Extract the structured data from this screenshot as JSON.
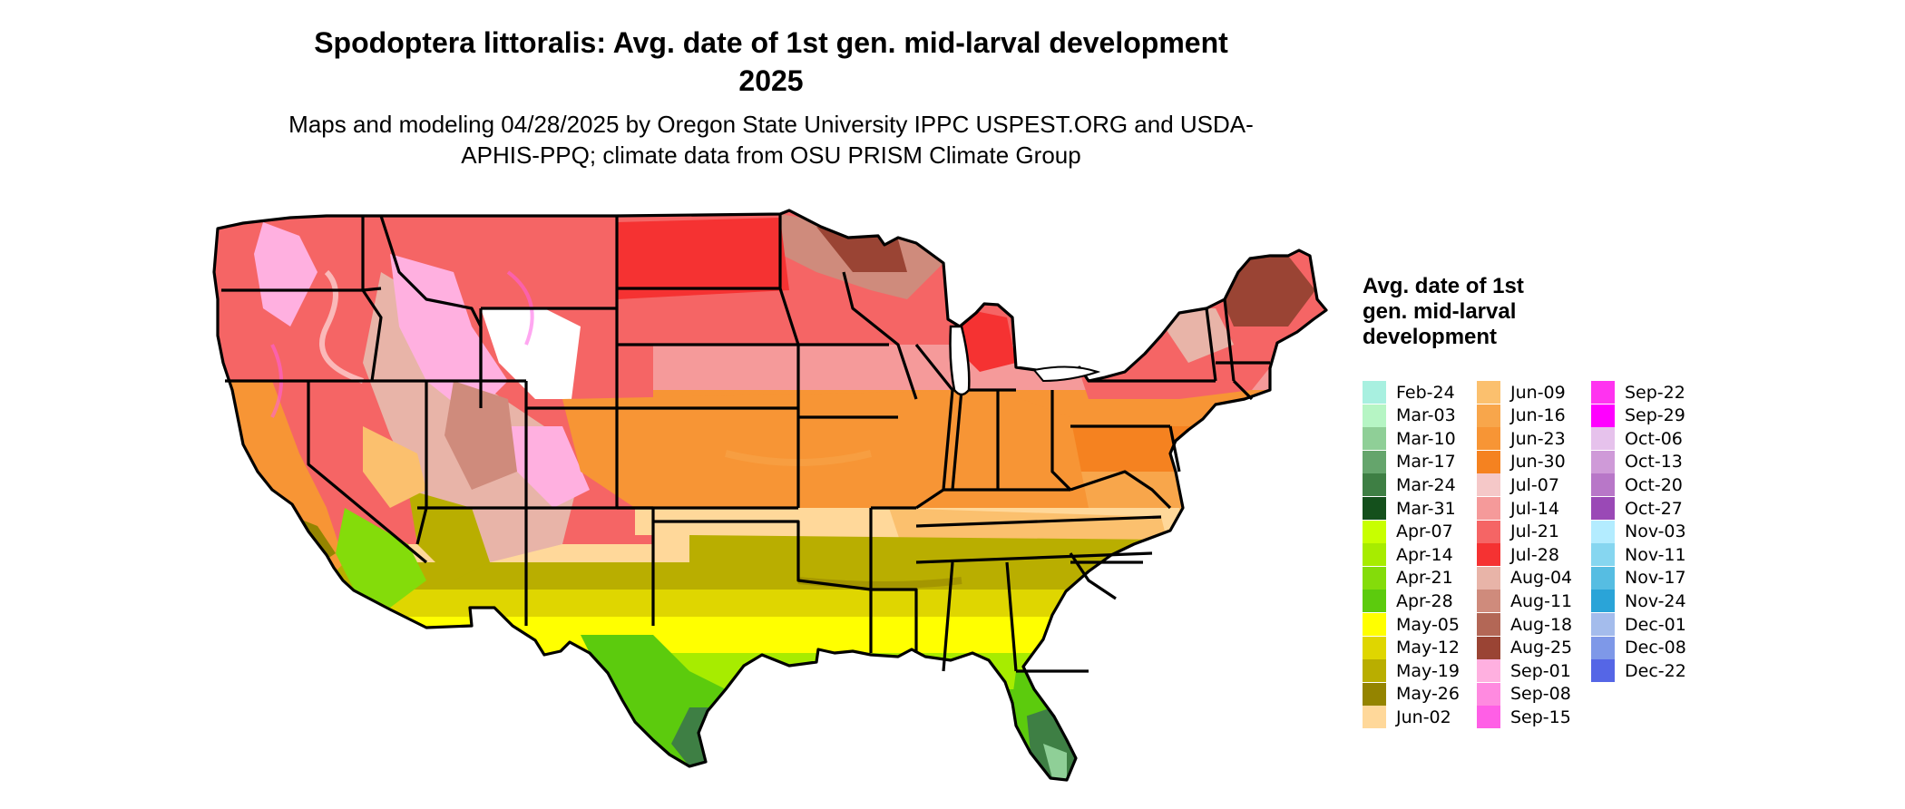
{
  "title": "Spodoptera littoralis: Avg. date of 1st gen. mid-larval development 2025",
  "subtitle": "Maps and modeling 04/28/2025 by Oregon State University IPPC USPEST.ORG and USDA-APHIS-PPQ; climate data from OSU PRISM Climate Group",
  "legend": {
    "title": "Avg. date of 1st gen. mid-larval development",
    "columns": [
      [
        {
          "label": "Feb-24",
          "color": "#a8f0e0"
        },
        {
          "label": "Mar-03",
          "color": "#b6f5c4"
        },
        {
          "label": "Mar-10",
          "color": "#8fcf97"
        },
        {
          "label": "Mar-17",
          "color": "#65a56c"
        },
        {
          "label": "Mar-24",
          "color": "#3e7f44"
        },
        {
          "label": "Mar-31",
          "color": "#14501c"
        },
        {
          "label": "Apr-07",
          "color": "#c8ff00"
        },
        {
          "label": "Apr-14",
          "color": "#a7ec00"
        },
        {
          "label": "Apr-21",
          "color": "#84dc0a"
        },
        {
          "label": "Apr-28",
          "color": "#5ccb0d"
        },
        {
          "label": "May-05",
          "color": "#ffff00"
        },
        {
          "label": "May-12",
          "color": "#dfd600"
        },
        {
          "label": "May-19",
          "color": "#b9ae00"
        },
        {
          "label": "May-26",
          "color": "#948400"
        },
        {
          "label": "Jun-02",
          "color": "#ffd89a"
        }
      ],
      [
        {
          "label": "Jun-09",
          "color": "#fbc06e"
        },
        {
          "label": "Jun-16",
          "color": "#f8a64b"
        },
        {
          "label": "Jun-23",
          "color": "#f79535"
        },
        {
          "label": "Jun-30",
          "color": "#f58220"
        },
        {
          "label": "Jul-07",
          "color": "#f5c8c8"
        },
        {
          "label": "Jul-14",
          "color": "#f59a9a"
        },
        {
          "label": "Jul-21",
          "color": "#f56565"
        },
        {
          "label": "Jul-28",
          "color": "#f53232"
        },
        {
          "label": "Aug-04",
          "color": "#e8b4a8"
        },
        {
          "label": "Aug-11",
          "color": "#cf8b7c"
        },
        {
          "label": "Aug-18",
          "color": "#b36756"
        },
        {
          "label": "Aug-25",
          "color": "#9a4434"
        },
        {
          "label": "Sep-01",
          "color": "#ffb0e0"
        },
        {
          "label": "Sep-08",
          "color": "#ff8ae0"
        },
        {
          "label": "Sep-15",
          "color": "#ff5fe6"
        }
      ],
      [
        {
          "label": "Sep-22",
          "color": "#ff33f0"
        },
        {
          "label": "Sep-29",
          "color": "#ff00ff"
        },
        {
          "label": "Oct-06",
          "color": "#e6c2ec"
        },
        {
          "label": "Oct-13",
          "color": "#cf9ad8"
        },
        {
          "label": "Oct-20",
          "color": "#b877c8"
        },
        {
          "label": "Oct-27",
          "color": "#9a49b6"
        },
        {
          "label": "Nov-03",
          "color": "#b3ecff"
        },
        {
          "label": "Nov-11",
          "color": "#86d6f0"
        },
        {
          "label": "Nov-17",
          "color": "#56bde2"
        },
        {
          "label": "Nov-24",
          "color": "#2aa4d8"
        },
        {
          "label": "Dec-01",
          "color": "#a4bcec"
        },
        {
          "label": "Dec-08",
          "color": "#7e98e8"
        },
        {
          "label": "Dec-22",
          "color": "#5566e6"
        }
      ]
    ]
  },
  "map": {
    "states": [
      {
        "name": "Washington"
      },
      {
        "name": "Oregon"
      },
      {
        "name": "California"
      },
      {
        "name": "Nevada"
      },
      {
        "name": "Idaho"
      },
      {
        "name": "Montana"
      },
      {
        "name": "Wyoming"
      },
      {
        "name": "Utah"
      },
      {
        "name": "Arizona"
      },
      {
        "name": "Colorado"
      },
      {
        "name": "New Mexico"
      },
      {
        "name": "North Dakota"
      },
      {
        "name": "South Dakota"
      },
      {
        "name": "Nebraska"
      },
      {
        "name": "Kansas"
      },
      {
        "name": "Oklahoma"
      },
      {
        "name": "Texas"
      },
      {
        "name": "Minnesota"
      },
      {
        "name": "Iowa"
      },
      {
        "name": "Missouri"
      },
      {
        "name": "Arkansas"
      },
      {
        "name": "Louisiana"
      },
      {
        "name": "Wisconsin"
      },
      {
        "name": "Illinois"
      },
      {
        "name": "Michigan"
      },
      {
        "name": "Indiana"
      },
      {
        "name": "Ohio"
      },
      {
        "name": "Kentucky"
      },
      {
        "name": "Tennessee"
      },
      {
        "name": "Mississippi"
      },
      {
        "name": "Alabama"
      },
      {
        "name": "Georgia"
      },
      {
        "name": "Florida"
      },
      {
        "name": "South Carolina"
      },
      {
        "name": "North Carolina"
      },
      {
        "name": "Virginia"
      },
      {
        "name": "West Virginia"
      },
      {
        "name": "Pennsylvania"
      },
      {
        "name": "New York"
      },
      {
        "name": "Maine"
      },
      {
        "name": "Vermont"
      },
      {
        "name": "New Hampshire"
      },
      {
        "name": "Massachusetts"
      },
      {
        "name": "Connecticut"
      },
      {
        "name": "Rhode Island"
      },
      {
        "name": "New Jersey"
      },
      {
        "name": "Delaware"
      },
      {
        "name": "Maryland"
      }
    ]
  }
}
